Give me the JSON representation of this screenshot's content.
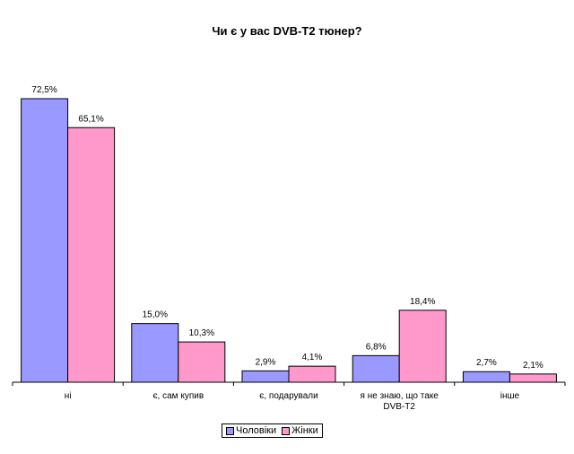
{
  "chart_data": {
    "type": "bar",
    "title": "Чи є у вас DVB-T2 тюнер?",
    "categories": [
      "ні",
      "є, сам купив",
      "є, подарували",
      "я не знаю, що таке DVB-T2",
      "інше"
    ],
    "series": [
      {
        "name": "Чоловіки",
        "color": "#9999ff",
        "values": [
          72.5,
          15.0,
          2.9,
          6.8,
          2.7
        ],
        "labels": [
          "72,5%",
          "15,0%",
          "2,9%",
          "6,8%",
          "2,7%"
        ]
      },
      {
        "name": "Жінки",
        "color": "#ff99cc",
        "values": [
          65.1,
          10.3,
          4.1,
          18.4,
          2.1
        ],
        "labels": [
          "65,1%",
          "10,3%",
          "4,1%",
          "18,4%",
          "2,1%"
        ]
      }
    ],
    "ylim": [
      0,
      72.5
    ],
    "grid": false,
    "legend_position": "bottom"
  }
}
